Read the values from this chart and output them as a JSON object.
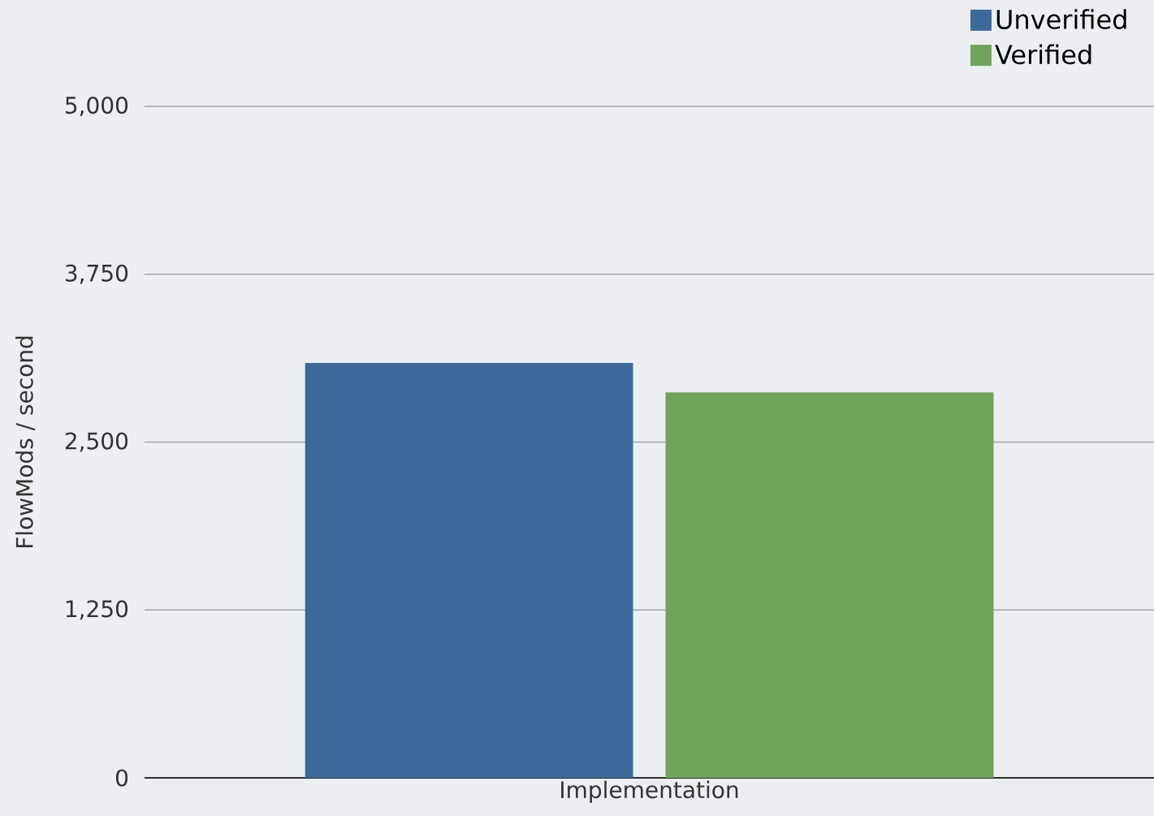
{
  "chart_data": {
    "type": "bar",
    "xlabel": "Implementation",
    "ylabel": "FlowMods / second",
    "categories": [
      null
    ],
    "series": [
      {
        "name": "Unverified",
        "color": "#3b6a9a",
        "values": [
          3090
        ]
      },
      {
        "name": "Verified",
        "color": "#6fa55a",
        "values": [
          2870
        ]
      }
    ],
    "ylim": [
      0,
      5000
    ],
    "yticks": [
      0,
      {
        "value": 1250,
        "label": "1,250"
      },
      {
        "value": 2500,
        "label": "2,500"
      },
      {
        "value": 3750,
        "label": "3,750"
      },
      {
        "value": 5000,
        "label": "5,000"
      }
    ],
    "grid": "y",
    "legend": "top right"
  }
}
